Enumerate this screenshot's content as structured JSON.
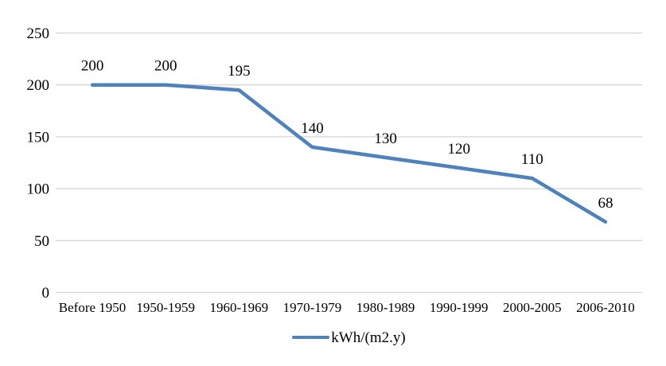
{
  "chart_data": {
    "type": "line",
    "title": "",
    "categories": [
      "Before 1950",
      "1950-1959",
      "1960-1969",
      "1970-1979",
      "1980-1989",
      "1990-1999",
      "2000-2005",
      "2006-2010"
    ],
    "series": [
      {
        "name": "kWh/(m2.y)",
        "values": [
          200,
          200,
          195,
          140,
          130,
          120,
          110,
          68
        ]
      }
    ],
    "data_labels": [
      "200",
      "200",
      "195",
      "140",
      "130",
      "120",
      "110",
      "68"
    ],
    "y_ticks": [
      0,
      50,
      100,
      150,
      200,
      250
    ],
    "ylim": [
      0,
      250
    ],
    "xlabel": "",
    "ylabel": "",
    "grid": "horizontal",
    "legend_position": "bottom",
    "colors": {
      "series": "#4F81BD",
      "gridline": "#D6D6D6",
      "text": "#000000",
      "background": "#FFFFFF"
    }
  }
}
